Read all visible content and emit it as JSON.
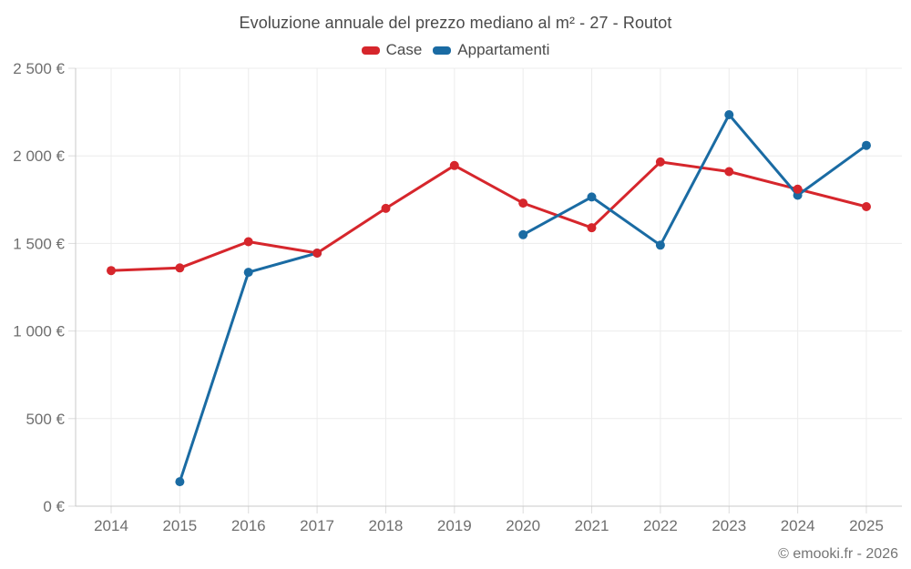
{
  "header": {
    "title": "Evoluzione annuale del prezzo mediano al m² - 27 - Routot",
    "credit": "© emooki.fr - 2026"
  },
  "colors": {
    "case_red": "#d6262c",
    "appartamenti_blue": "#1a6ba3",
    "grid": "#ececec",
    "tick": "#dcdcdc",
    "axis": "#c9c9c9",
    "tick_text": "#6f6f6f",
    "title_text": "#4a4a4a"
  },
  "chart_data": {
    "type": "line",
    "title": "Evoluzione annuale del prezzo mediano al m² - 27 - Routot",
    "categories": [
      "2014",
      "2015",
      "2016",
      "2017",
      "2018",
      "2019",
      "2020",
      "2021",
      "2022",
      "2023",
      "2024",
      "2025"
    ],
    "series": [
      {
        "name": "Case",
        "color": "#d6262c",
        "values": [
          1345,
          1360,
          1510,
          1445,
          1700,
          1945,
          1730,
          1590,
          1965,
          1910,
          1810,
          1710
        ]
      },
      {
        "name": "Appartamenti",
        "color": "#1a6ba3",
        "values": [
          null,
          140,
          1335,
          1445,
          null,
          null,
          1550,
          1765,
          1490,
          2235,
          1775,
          2060
        ]
      }
    ],
    "xlabel": "",
    "ylabel": "",
    "ylim": [
      0,
      2500
    ],
    "yticks": [
      0,
      500,
      1000,
      1500,
      2000,
      2500
    ],
    "ytick_labels": [
      "0 €",
      "500 €",
      "1 000 €",
      "1 500 €",
      "2 000 €",
      "2 500 €"
    ],
    "grid": true,
    "legend_position": "top"
  }
}
